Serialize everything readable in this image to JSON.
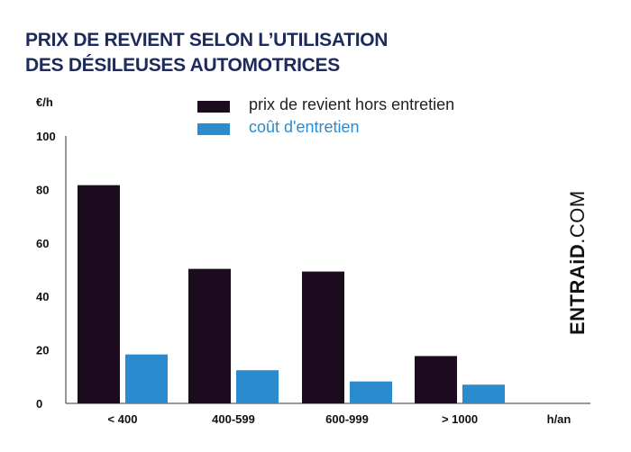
{
  "title_line1": "PRIX DE REVIENT SELON L’UTILISATION",
  "title_line2": "DES DÉSILEUSES AUTOMOTRICES",
  "brand": {
    "bold": "ENTRAiD",
    "light": ".COM"
  },
  "colors": {
    "dark": "#1c0a1f",
    "blue": "#2a8ccf",
    "title": "#1f2a5c"
  },
  "chart_data": {
    "type": "bar",
    "title": "PRIX DE REVIENT SELON L’UTILISATION DES DÉSILEUSES AUTOMOTRICES",
    "ylabel": "€/h",
    "xlabel": "h/an",
    "ylim": [
      0,
      100
    ],
    "yticks": [
      "0",
      "20",
      "40",
      "60",
      "80",
      "100"
    ],
    "categories": [
      "< 400",
      "400-599",
      "600-999",
      "> 1000"
    ],
    "legend_position": "top",
    "series": [
      {
        "name": "prix de revient hors entretien",
        "values": [
          81.6,
          50.3,
          49.3,
          17.7
        ]
      },
      {
        "name": "coût d'entretien",
        "values": [
          18.3,
          12.4,
          8.2,
          7.0
        ]
      }
    ]
  }
}
